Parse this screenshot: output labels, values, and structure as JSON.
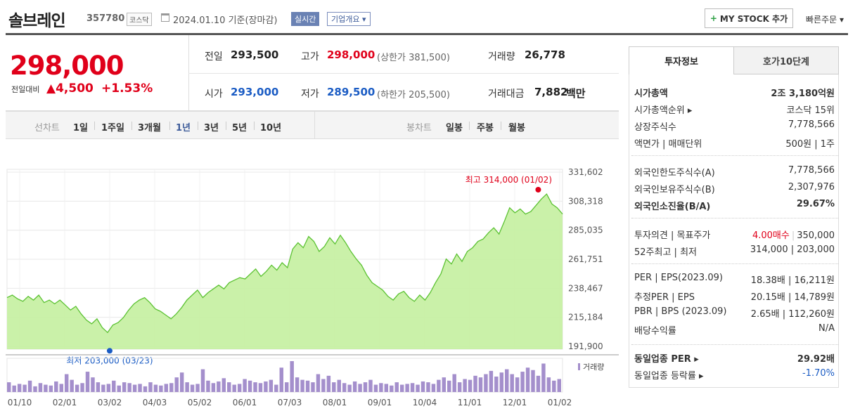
{
  "header": {
    "company": "솔브레인",
    "code": "357780",
    "market": "코스닥",
    "date": "2024.01.10  기준(장마감)",
    "live": "실시간",
    "overview": "기업개요 ▾",
    "mystock": "MY STOCK 추가",
    "quick_order": "빠른주문 ▾"
  },
  "price": {
    "current": "298,000",
    "prev_label": "전일대비",
    "diff": "▲4,500",
    "pct": "+1.53%"
  },
  "quote": {
    "prev_close": {
      "label": "전일",
      "value": "293,500"
    },
    "high": {
      "label": "고가",
      "value": "298,000",
      "sub": "(상한가 381,500)"
    },
    "volume": {
      "label": "거래량",
      "value": "26,778"
    },
    "open": {
      "label": "시가",
      "value": "293,000"
    },
    "low": {
      "label": "저가",
      "value": "289,500",
      "sub": "(하한가 205,500)"
    },
    "amount": {
      "label": "거래대금",
      "value": "7,882",
      "unit": "백만"
    }
  },
  "tabs": {
    "line_label": "선차트",
    "periods": [
      "1일",
      "1주일",
      "3개월",
      "1년",
      "3년",
      "5년",
      "10년"
    ],
    "active_period": "1년",
    "candle_label": "봉차트",
    "candles": [
      "일봉",
      "주봉",
      "월봉"
    ]
  },
  "chart_data": {
    "type": "area",
    "y_ticks": [
      "331,602",
      "308,318",
      "285,035",
      "261,751",
      "238,467",
      "215,184",
      "191,900"
    ],
    "ylim": [
      191900,
      331602
    ],
    "x_labels": [
      "01/10",
      "02/01",
      "03/02",
      "04/03",
      "05/02",
      "06/01",
      "07/03",
      "08/01",
      "09/01",
      "10/04",
      "11/01",
      "12/01",
      "01/02"
    ],
    "high_label": "최고 314,000 (01/02)",
    "low_label": "최저 203,000 (03/23)",
    "volume_label": "거래량",
    "series": [
      {
        "values": [
          231000,
          233000,
          230000,
          228000,
          232000,
          229000,
          233000,
          227000,
          229000,
          226000,
          229000,
          225000,
          221000,
          224000,
          218000,
          213000,
          210000,
          214000,
          207000,
          203000,
          209000,
          211000,
          215000,
          221000,
          226000,
          229000,
          231000,
          227000,
          222000,
          220000,
          217000,
          214000,
          218000,
          223000,
          229000,
          233000,
          237000,
          231000,
          235000,
          238000,
          241000,
          238000,
          243000,
          245000,
          247000,
          246000,
          250000,
          254000,
          248000,
          252000,
          257000,
          253000,
          259000,
          255000,
          270000,
          275000,
          271000,
          280000,
          276000,
          268000,
          272000,
          279000,
          274000,
          281000,
          275000,
          268000,
          262000,
          257000,
          249000,
          243000,
          240000,
          237000,
          232000,
          229000,
          234000,
          236000,
          231000,
          228000,
          233000,
          229000,
          235000,
          243000,
          250000,
          262000,
          258000,
          266000,
          260000,
          268000,
          271000,
          276000,
          278000,
          283000,
          287000,
          282000,
          292000,
          303000,
          299000,
          302000,
          298000,
          300000,
          305000,
          310000,
          314000,
          306000,
          303000,
          298000
        ]
      }
    ],
    "volumes": [
      12,
      8,
      10,
      9,
      14,
      7,
      11,
      9,
      8,
      13,
      10,
      22,
      15,
      9,
      11,
      25,
      18,
      12,
      9,
      10,
      14,
      8,
      12,
      11,
      9,
      10,
      7,
      12,
      9,
      8,
      10,
      11,
      18,
      24,
      12,
      9,
      10,
      28,
      14,
      11,
      13,
      17,
      12,
      9,
      10,
      16,
      14,
      12,
      11,
      13,
      15,
      9,
      30,
      12,
      38,
      18,
      15,
      14,
      12,
      22,
      16,
      20,
      12,
      15,
      11,
      9,
      13,
      10,
      12,
      15,
      9,
      11,
      10,
      8,
      12,
      9,
      10,
      11,
      9,
      13,
      12,
      10,
      15,
      18,
      14,
      22,
      12,
      16,
      15,
      20,
      18,
      22,
      26,
      19,
      24,
      28,
      22,
      18,
      25,
      30,
      27,
      20,
      35,
      18,
      14,
      16
    ]
  },
  "right": {
    "tab_active": "투자정보",
    "tab_other": "호가10단계",
    "rows1": [
      {
        "label": "시가총액",
        "value": "2조 3,180억원",
        "bold": true
      },
      {
        "label": "시가총액순위 ▸",
        "value": "코스닥 15위"
      },
      {
        "label": "상장주식수",
        "value": "7,778,566"
      },
      {
        "label": "액면가 | 매매단위",
        "value": "500원 | 1주"
      }
    ],
    "rows2": [
      {
        "label": "외국인한도주식수(A)",
        "value": "7,778,566"
      },
      {
        "label": "외국인보유주식수(B)",
        "value": "2,307,976"
      },
      {
        "label": "외국인소진율(B/A)",
        "value": "29.67%",
        "bold": true
      }
    ],
    "rows3": [
      {
        "label": "투자의견 | 목표주가",
        "value_red": "4.00매수",
        "value": "350,000"
      },
      {
        "label": "52주최고 | 최저",
        "value": "314,000 | 203,000"
      }
    ],
    "rows4": [
      {
        "label": "PER | EPS(2023.09)",
        "value": "18.38배 | 16,211원"
      },
      {
        "label": "추정PER | EPS",
        "value": "20.15배 | 14,789원"
      },
      {
        "label": "PBR | BPS (2023.09)",
        "value": "2.65배 | 112,260원"
      },
      {
        "label": "배당수익률",
        "value": "N/A"
      }
    ],
    "rows5": [
      {
        "label": "동일업종 PER ▸",
        "value": "29.92배",
        "bold": true
      },
      {
        "label": "동일업종 등락률 ▸",
        "value": "-1.70%",
        "blue": true
      }
    ]
  },
  "colors": {
    "up": "#e0001a",
    "down": "#1b5cc4",
    "area": "#b9ec8f",
    "line": "#61c33a"
  }
}
